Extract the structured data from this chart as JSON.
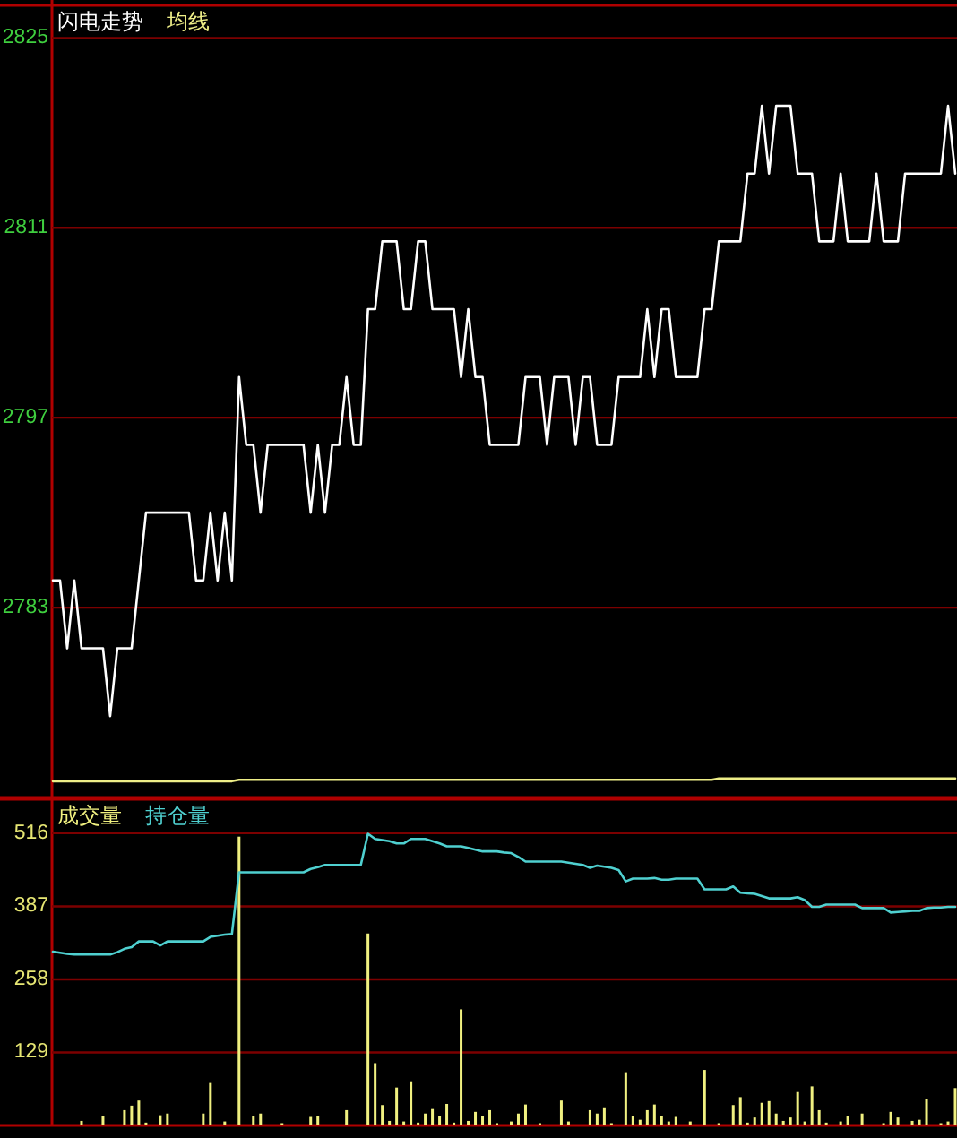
{
  "chart_data": [
    {
      "type": "line",
      "categories": [
        null,
        null,
        null,
        null,
        null,
        null,
        null,
        null,
        null,
        null,
        null,
        null,
        null,
        null,
        null,
        null,
        null,
        null,
        null,
        null,
        null,
        null,
        null,
        null,
        null,
        null,
        null,
        null,
        null,
        null,
        null,
        null,
        null,
        null,
        null,
        null,
        null,
        null,
        null,
        null,
        null,
        null,
        null,
        null,
        null,
        null,
        null,
        null,
        null,
        null,
        null,
        null,
        null,
        null,
        null,
        null,
        null,
        null,
        null,
        null,
        null,
        null,
        null,
        null,
        null,
        null,
        null,
        null,
        null,
        null,
        null,
        null,
        null,
        null,
        null,
        null,
        null,
        null,
        null,
        null,
        null,
        null,
        null,
        null,
        null,
        null,
        null,
        null,
        null,
        null,
        null,
        null,
        null,
        null,
        null,
        null,
        null,
        null,
        null,
        null,
        null,
        null,
        null,
        null,
        null,
        null,
        null,
        null,
        null,
        null,
        null,
        null,
        null,
        null,
        null,
        null,
        null,
        null,
        null,
        null,
        null,
        null,
        null,
        null,
        null,
        null,
        null
      ],
      "series": [
        {
          "name": "闪电走势",
          "color": "#ffffff",
          "values": [
            2785,
            2785,
            2780,
            2785,
            2780,
            2780,
            2780,
            2780,
            2775,
            2780,
            2780,
            2780,
            2785,
            2790,
            2790,
            2790,
            2790,
            2790,
            2790,
            2790,
            2785,
            2785,
            2790,
            2785,
            2790,
            2785,
            2800,
            2795,
            2795,
            2790,
            2795,
            2795,
            2795,
            2795,
            2795,
            2795,
            2790,
            2795,
            2790,
            2795,
            2795,
            2800,
            2795,
            2795,
            2805,
            2805,
            2810,
            2810,
            2810,
            2805,
            2805,
            2810,
            2810,
            2805,
            2805,
            2805,
            2805,
            2800,
            2805,
            2800,
            2800,
            2795,
            2795,
            2795,
            2795,
            2795,
            2800,
            2800,
            2800,
            2795,
            2800,
            2800,
            2800,
            2795,
            2800,
            2800,
            2795,
            2795,
            2795,
            2800,
            2800,
            2800,
            2800,
            2805,
            2800,
            2805,
            2805,
            2800,
            2800,
            2800,
            2800,
            2805,
            2805,
            2810,
            2810,
            2810,
            2810,
            2815,
            2815,
            2820,
            2815,
            2820,
            2820,
            2820,
            2815,
            2815,
            2815,
            2810,
            2810,
            2810,
            2815,
            2810,
            2810,
            2810,
            2810,
            2815,
            2810,
            2810,
            2810,
            2815,
            2815,
            2815,
            2815,
            2815,
            2815,
            2820,
            2815
          ]
        },
        {
          "name": "均线",
          "color": "#eeee88",
          "values": [
            2770.2,
            2770.2,
            2770.2,
            2770.2,
            2770.2,
            2770.2,
            2770.2,
            2770.2,
            2770.2,
            2770.2,
            2770.2,
            2770.2,
            2770.2,
            2770.2,
            2770.2,
            2770.2,
            2770.2,
            2770.2,
            2770.2,
            2770.2,
            2770.2,
            2770.2,
            2770.2,
            2770.2,
            2770.2,
            2770.2,
            2770.3,
            2770.3,
            2770.3,
            2770.3,
            2770.3,
            2770.3,
            2770.3,
            2770.3,
            2770.3,
            2770.3,
            2770.3,
            2770.3,
            2770.3,
            2770.3,
            2770.3,
            2770.3,
            2770.3,
            2770.3,
            2770.3,
            2770.3,
            2770.3,
            2770.3,
            2770.3,
            2770.3,
            2770.3,
            2770.3,
            2770.3,
            2770.3,
            2770.3,
            2770.3,
            2770.3,
            2770.3,
            2770.3,
            2770.3,
            2770.3,
            2770.3,
            2770.3,
            2770.3,
            2770.3,
            2770.3,
            2770.3,
            2770.3,
            2770.3,
            2770.3,
            2770.3,
            2770.3,
            2770.3,
            2770.3,
            2770.3,
            2770.3,
            2770.3,
            2770.3,
            2770.3,
            2770.3,
            2770.3,
            2770.3,
            2770.3,
            2770.3,
            2770.3,
            2770.3,
            2770.3,
            2770.3,
            2770.3,
            2770.3,
            2770.3,
            2770.3,
            2770.3,
            2770.4,
            2770.4,
            2770.4,
            2770.4,
            2770.4,
            2770.4,
            2770.4,
            2770.4,
            2770.4,
            2770.4,
            2770.4,
            2770.4,
            2770.4,
            2770.4,
            2770.4,
            2770.4,
            2770.4,
            2770.4,
            2770.4,
            2770.4,
            2770.4,
            2770.4,
            2770.4,
            2770.4,
            2770.4,
            2770.4,
            2770.4,
            2770.4,
            2770.4,
            2770.4,
            2770.4,
            2770.4,
            2770.4,
            2770.4
          ]
        }
      ],
      "ylim": [
        2769,
        2827.4
      ],
      "yticks": [
        2783,
        2797,
        2811,
        2825
      ],
      "grid": "y",
      "legend": "top left",
      "tick_labels": "y"
    },
    {
      "type": "bar",
      "categories": [
        null,
        null,
        null,
        null,
        null,
        null,
        null,
        null,
        null,
        null,
        null,
        null,
        null,
        null,
        null,
        null,
        null,
        null,
        null,
        null,
        null,
        null,
        null,
        null,
        null,
        null,
        null,
        null,
        null,
        null,
        null,
        null,
        null,
        null,
        null,
        null,
        null,
        null,
        null,
        null,
        null,
        null,
        null,
        null,
        null,
        null,
        null,
        null,
        null,
        null,
        null,
        null,
        null,
        null,
        null,
        null,
        null,
        null,
        null,
        null,
        null,
        null,
        null,
        null,
        null,
        null,
        null,
        null,
        null,
        null,
        null,
        null,
        null,
        null,
        null,
        null,
        null,
        null,
        null,
        null,
        null,
        null,
        null,
        null,
        null,
        null,
        null,
        null,
        null,
        null,
        null,
        null,
        null,
        null,
        null,
        null,
        null,
        null,
        null,
        null,
        null,
        null,
        null,
        null,
        null,
        null,
        null,
        null,
        null,
        null,
        null,
        null,
        null,
        null,
        null,
        null,
        null,
        null,
        null,
        null,
        null,
        null,
        null,
        null,
        null,
        null,
        null
      ],
      "series": [
        {
          "name": "成交量",
          "color": "#f0f080",
          "values": [
            null,
            null,
            null,
            null,
            8,
            null,
            null,
            16,
            null,
            null,
            27,
            35,
            44,
            5,
            null,
            18,
            21,
            null,
            null,
            null,
            null,
            21,
            75,
            null,
            7,
            null,
            510,
            null,
            17,
            21,
            null,
            null,
            4,
            null,
            null,
            null,
            15,
            17,
            null,
            null,
            null,
            27,
            null,
            null,
            339,
            110,
            36,
            8,
            67,
            7,
            78,
            5,
            21,
            29,
            16,
            38,
            5,
            205,
            8,
            24,
            16,
            27,
            4,
            null,
            7,
            21,
            37,
            null,
            4,
            null,
            null,
            44,
            7,
            null,
            null,
            27,
            21,
            32,
            4,
            null,
            94,
            17,
            10,
            27,
            37,
            17,
            7,
            15,
            null,
            7,
            null,
            98,
            null,
            4,
            null,
            36,
            50,
            5,
            14,
            40,
            43,
            21,
            8,
            14,
            59,
            7,
            69,
            27,
            5,
            null,
            7,
            17,
            null,
            21,
            null,
            null,
            4,
            24,
            14,
            null,
            8,
            10,
            46,
            null,
            4,
            7,
            66
          ]
        },
        {
          "name": "持仓量",
          "type": "line",
          "color": "#4fd0d0",
          "values": [
            307,
            305,
            303,
            302,
            302,
            302,
            302,
            302,
            302,
            306,
            312,
            315,
            325,
            325,
            325,
            318,
            325,
            325,
            325,
            325,
            325,
            325,
            333,
            335,
            337,
            338,
            447,
            447,
            447,
            447,
            447,
            447,
            447,
            447,
            447,
            447,
            453,
            456,
            460,
            460,
            460,
            460,
            460,
            460,
            515,
            506,
            504,
            502,
            498,
            498,
            506,
            506,
            506,
            502,
            498,
            493,
            493,
            493,
            490,
            487,
            484,
            484,
            484,
            482,
            481,
            474,
            466,
            466,
            466,
            466,
            466,
            466,
            464,
            462,
            460,
            455,
            459,
            457,
            455,
            451,
            431,
            436,
            436,
            436,
            437,
            434,
            434,
            436,
            436,
            436,
            436,
            417,
            417,
            417,
            417,
            422,
            411,
            410,
            409,
            405,
            401,
            401,
            401,
            401,
            403,
            398,
            386,
            386,
            390,
            390,
            390,
            390,
            390,
            384,
            384,
            384,
            384,
            376,
            377,
            378,
            379,
            379,
            384,
            385,
            385,
            386,
            386
          ]
        }
      ],
      "ylim": [
        0,
        576
      ],
      "yticks": [
        129,
        258,
        387,
        516
      ],
      "grid": "y",
      "legend": "top left",
      "tick_labels": "y"
    }
  ]
}
